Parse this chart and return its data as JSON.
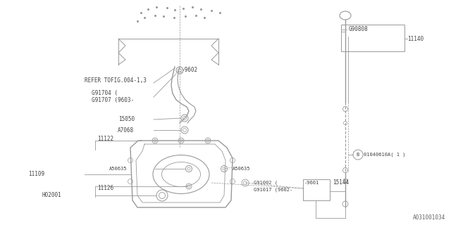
{
  "bg_color": "#ffffff",
  "line_color": "#999999",
  "text_color": "#444444",
  "fig_ref": "A031001034",
  "figsize": [
    6.4,
    3.2
  ],
  "dpi": 100,
  "xlim": [
    0,
    640
  ],
  "ylim": [
    0,
    320
  ]
}
